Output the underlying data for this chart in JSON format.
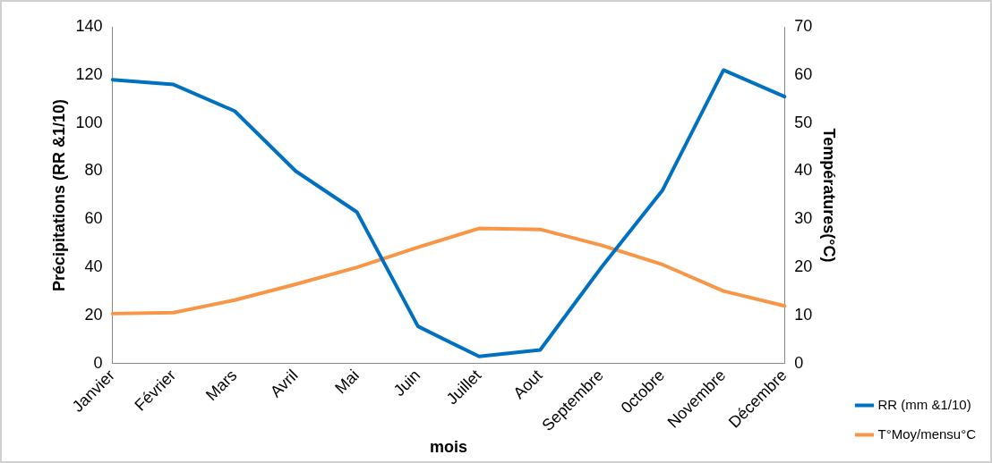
{
  "chart_data": {
    "type": "line",
    "xlabel": "mois",
    "ylabel": "Précipitations (RR &1/10)",
    "y2label": "Températures(°C)",
    "categories": [
      "Janvier",
      "Février",
      "Mars",
      "Avril",
      "Mai",
      "Juin",
      "Juillet",
      "Aout",
      "Septembre",
      "0ctobre",
      "Novembre",
      "Décembre"
    ],
    "series": [
      {
        "name": "RR (mm &1/10)",
        "color": "#0070c0",
        "values": [
          118,
          116,
          105,
          80,
          63,
          15.5,
          3,
          5.7,
          40,
          72,
          122,
          111
        ]
      },
      {
        "name": "T°Moy/mensu°C",
        "color": "#f79646",
        "axis": "y2",
        "values": [
          10.4,
          10.6,
          13.2,
          16.5,
          20,
          24.2,
          28.1,
          27.9,
          24.6,
          20.6,
          15.1,
          12
        ]
      }
    ],
    "ylim": [
      0,
      140
    ],
    "yticks": [
      0,
      20,
      40,
      60,
      80,
      100,
      120,
      140
    ],
    "y2lim": [
      0,
      70
    ],
    "y2ticks": [
      0,
      10,
      20,
      30,
      40,
      50,
      60,
      70
    ],
    "grid": false,
    "legend": "bottom right",
    "marker": "none",
    "line_style": "solid"
  }
}
